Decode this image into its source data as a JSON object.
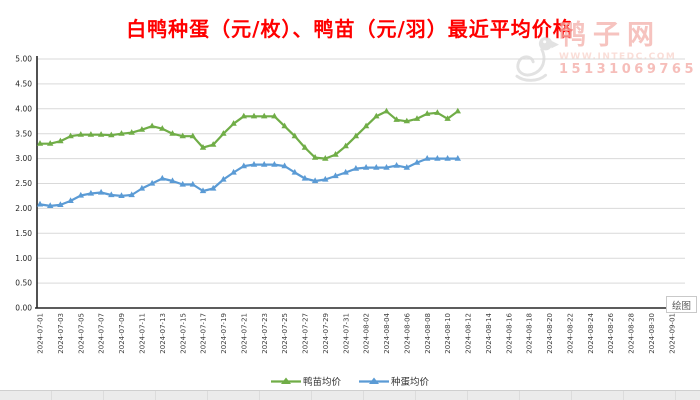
{
  "watermark": {
    "site": "鸭子网",
    "url": "WWW.INTEDC.COM",
    "phone": "15131069765"
  },
  "plot_tag_label": "绘图",
  "colors": {
    "title": "#ff0000",
    "grid": "#d9d9d9",
    "axis": "#262626",
    "series_duckling": "#70ad47",
    "series_egg": "#5b9bd5",
    "watermark_pink": "#f3b0aa",
    "watermark_gray": "#c9c9c9"
  },
  "chart_data": {
    "type": "line",
    "title": "白鸭种蛋（元/枚）、鸭苗（元/羽）最近平均价格",
    "xlabel": "",
    "ylabel": "",
    "ylim": [
      0,
      5
    ],
    "ytick_step": 0.5,
    "ytick_labels": [
      "0.00",
      "0.50",
      "1.00",
      "1.50",
      "2.00",
      "2.50",
      "3.00",
      "3.50",
      "4.00",
      "4.50",
      "5.00"
    ],
    "grid": true,
    "legend_position": "bottom",
    "x": [
      "2024-07-01",
      "2024-07-02",
      "2024-07-03",
      "2024-07-04",
      "2024-07-05",
      "2024-07-06",
      "2024-07-07",
      "2024-07-08",
      "2024-07-09",
      "2024-07-10",
      "2024-07-11",
      "2024-07-12",
      "2024-07-13",
      "2024-07-14",
      "2024-07-15",
      "2024-07-16",
      "2024-07-17",
      "2024-07-18",
      "2024-07-19",
      "2024-07-20",
      "2024-07-21",
      "2024-07-22",
      "2024-07-23",
      "2024-07-24",
      "2024-07-25",
      "2024-07-26",
      "2024-07-27",
      "2024-07-28",
      "2024-07-29",
      "2024-07-30",
      "2024-07-31",
      "2024-08-01",
      "2024-08-02",
      "2024-08-03",
      "2024-08-04",
      "2024-08-05",
      "2024-08-06",
      "2024-08-07",
      "2024-08-08",
      "2024-08-09",
      "2024-08-10",
      "2024-08-11"
    ],
    "x_axis_tick_labels": [
      "2024-07-01",
      "2024-07-03",
      "2024-07-05",
      "2024-07-07",
      "2024-07-09",
      "2024-07-11",
      "2024-07-13",
      "2024-07-15",
      "2024-07-17",
      "2024-07-19",
      "2024-07-21",
      "2024-07-23",
      "2024-07-25",
      "2024-07-27",
      "2024-07-29",
      "2024-07-31",
      "2024-08-02",
      "2024-08-04",
      "2024-08-06",
      "2024-08-08",
      "2024-08-10",
      "2024-08-12",
      "2024-08-14",
      "2024-08-16",
      "2024-08-18",
      "2024-08-20",
      "2024-08-22",
      "2024-08-24",
      "2024-08-26",
      "2024-08-28",
      "2024-08-30",
      "2024-09-01"
    ],
    "series": [
      {
        "name": "鸭苗均价",
        "unit": "元/羽",
        "color": "#70ad47",
        "marker": "triangle",
        "values": [
          3.3,
          3.3,
          3.35,
          3.45,
          3.48,
          3.48,
          3.48,
          3.47,
          3.5,
          3.52,
          3.58,
          3.65,
          3.6,
          3.5,
          3.45,
          3.45,
          3.22,
          3.28,
          3.5,
          3.7,
          3.85,
          3.85,
          3.85,
          3.85,
          3.65,
          3.45,
          3.22,
          3.02,
          3.0,
          3.08,
          3.25,
          3.45,
          3.65,
          3.85,
          3.95,
          3.78,
          3.75,
          3.8,
          3.9,
          3.92,
          3.8,
          3.95
        ]
      },
      {
        "name": "种蛋均价",
        "unit": "元/枚",
        "color": "#5b9bd5",
        "marker": "triangle",
        "values": [
          2.08,
          2.05,
          2.07,
          2.15,
          2.26,
          2.3,
          2.32,
          2.27,
          2.25,
          2.27,
          2.4,
          2.5,
          2.6,
          2.55,
          2.48,
          2.48,
          2.35,
          2.4,
          2.58,
          2.72,
          2.85,
          2.88,
          2.88,
          2.88,
          2.85,
          2.72,
          2.6,
          2.55,
          2.58,
          2.65,
          2.72,
          2.8,
          2.82,
          2.82,
          2.82,
          2.86,
          2.82,
          2.92,
          3.0,
          3.0,
          3.0,
          3.0
        ]
      }
    ]
  }
}
